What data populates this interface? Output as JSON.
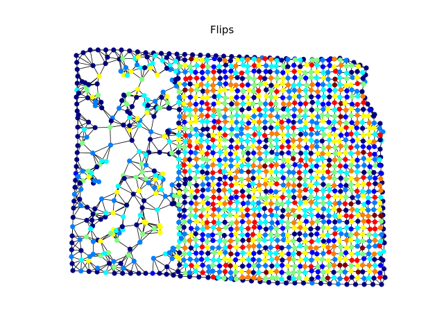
{
  "figure": {
    "title": "Flips"
  },
  "chart_data": {
    "type": "graph",
    "title": "Flips",
    "colormap": "jet",
    "colormap_stops": [
      "#00007f",
      "#0000ff",
      "#007fff",
      "#00ffff",
      "#7fff7f",
      "#ffff00",
      "#ff7f00",
      "#ff0000",
      "#7f0000"
    ],
    "edge_color": "#000000",
    "axes": "off",
    "grid": false,
    "legend": "none"
  }
}
